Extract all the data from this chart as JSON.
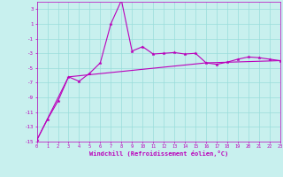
{
  "xlabel": "Windchill (Refroidissement éolien,°C)",
  "xlim": [
    0,
    23
  ],
  "ylim": [
    -15,
    4
  ],
  "yticks": [
    3,
    1,
    -1,
    -3,
    -5,
    -7,
    -9,
    -11,
    -13,
    -15
  ],
  "xticks": [
    0,
    1,
    2,
    3,
    4,
    5,
    6,
    7,
    8,
    9,
    10,
    11,
    12,
    13,
    14,
    15,
    16,
    17,
    18,
    19,
    20,
    21,
    22,
    23
  ],
  "background_color": "#c8f0ee",
  "grid_color": "#99ddda",
  "line_color": "#bb00bb",
  "line1_x": [
    0,
    1,
    2,
    3,
    4,
    5,
    6,
    7,
    8,
    9,
    10,
    11,
    12,
    13,
    14,
    15,
    16,
    17,
    18,
    19,
    20,
    21,
    22,
    23
  ],
  "line1_y": [
    -14.8,
    -12.0,
    -9.5,
    -6.2,
    -6.8,
    -5.7,
    -4.3,
    1.0,
    4.2,
    -2.7,
    -2.1,
    -3.1,
    -3.0,
    -2.9,
    -3.1,
    -3.0,
    -4.3,
    -4.5,
    -4.2,
    -3.8,
    -3.5,
    -3.6,
    -3.8,
    -4.0
  ],
  "line2_x": [
    0,
    3,
    16,
    23
  ],
  "line2_y": [
    -14.8,
    -6.2,
    -4.3,
    -4.0
  ]
}
